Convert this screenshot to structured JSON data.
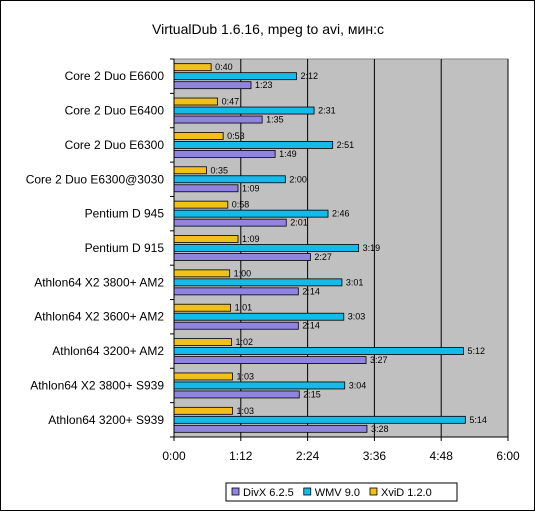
{
  "chart_data": {
    "type": "bar",
    "orientation": "horizontal",
    "title": "VirtualDub 1.6.16, mpeg  to avi, мин:с",
    "xlabel": "",
    "ylabel": "",
    "x_unit": "seconds",
    "xlim": [
      0,
      360
    ],
    "x_ticks": [
      0,
      72,
      144,
      216,
      288,
      360
    ],
    "x_tick_labels": [
      "0:00",
      "1:12",
      "2:24",
      "3:36",
      "4:48",
      "6:00"
    ],
    "grid": "vertical",
    "legend_position": "bottom",
    "categories": [
      "Core 2 Duo E6600",
      "Core 2 Duo E6400",
      "Core 2 Duo E6300",
      "Core 2 Duo E6300@3030",
      "Pentium D 945",
      "Pentium D 915",
      "Athlon64 X2 3800+ AM2",
      "Athlon64 X2 3600+ AM2",
      "Athlon64 3200+ AM2",
      "Athlon64 X2 3800+ S939",
      "Athlon64 3200+ S939"
    ],
    "series": [
      {
        "name": "XviD 1.2.0",
        "color": "#f2c01b",
        "values": [
          40,
          47,
          53,
          35,
          58,
          69,
          60,
          61,
          62,
          63,
          63
        ],
        "labels": [
          "0:40",
          "0:47",
          "0:53",
          "0:35",
          "0:58",
          "1:09",
          "1:00",
          "1:01",
          "1:02",
          "1:03",
          "1:03"
        ]
      },
      {
        "name": "WMV 9.0",
        "color": "#14bbe8",
        "values": [
          132,
          151,
          171,
          120,
          166,
          199,
          181,
          183,
          312,
          184,
          314
        ],
        "labels": [
          "2:12",
          "2:31",
          "2:51",
          "2:00",
          "2:46",
          "3:19",
          "3:01",
          "3:03",
          "5:12",
          "3:04",
          "5:14"
        ]
      },
      {
        "name": "DivX 6.2.5",
        "color": "#8f85e0",
        "values": [
          83,
          95,
          109,
          69,
          121,
          147,
          134,
          134,
          207,
          135,
          208
        ],
        "labels": [
          "1:23",
          "1:35",
          "1:49",
          "1:09",
          "2:01",
          "2:27",
          "2:14",
          "2:14",
          "3:27",
          "2:15",
          "3:28"
        ]
      }
    ],
    "legend_order": [
      "DivX 6.2.5",
      "WMV 9.0",
      "XviD 1.2.0"
    ],
    "plot_background": "#c0c0c0"
  }
}
